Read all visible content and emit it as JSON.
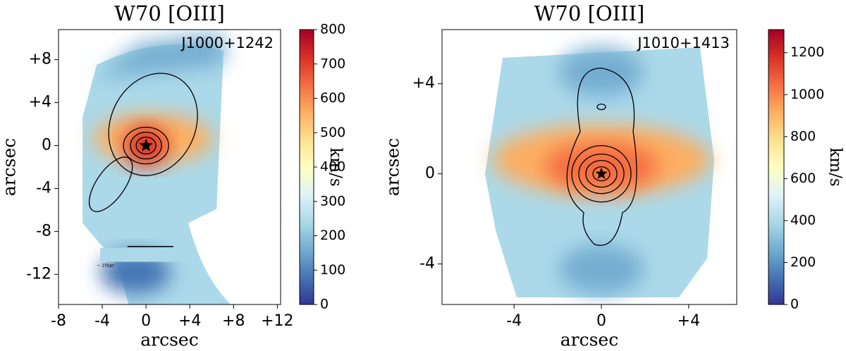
{
  "chart_data": [
    {
      "type": "heatmap",
      "title": "W70 [OIII]",
      "annotation": "J1000+1242",
      "scale_label": "~ 15kpc",
      "xlabel": "arcsec",
      "ylabel": "arcsec",
      "xlim": [
        -8,
        12.3
      ],
      "ylim": [
        -14.8,
        10.8
      ],
      "xticks": [
        -8,
        -4,
        0,
        {
          "value": 4,
          "label": "+4"
        },
        {
          "value": 8,
          "label": "+8"
        },
        {
          "value": 12,
          "label": "+12"
        }
      ],
      "yticks": [
        {
          "value": 8,
          "label": "+8"
        },
        {
          "value": 4,
          "label": "+4"
        },
        0,
        -4,
        -8,
        -12
      ],
      "colorbar": {
        "label": "km/s",
        "lim": [
          0,
          800
        ],
        "ticks": [
          0,
          100,
          200,
          300,
          400,
          500,
          600,
          700,
          800
        ],
        "colormap": "RdYlBu_r"
      }
    },
    {
      "type": "heatmap",
      "title": "W70 [OIII]",
      "annotation": "J1010+1413",
      "xlabel": "arcsec",
      "ylabel": "arcsec",
      "xlim": [
        -7.3,
        6.2
      ],
      "ylim": [
        -5.8,
        6.4
      ],
      "xticks": [
        -4,
        0,
        {
          "value": 4,
          "label": "+4"
        }
      ],
      "yticks": [
        {
          "value": 4,
          "label": "+4"
        },
        0,
        -4
      ],
      "colorbar": {
        "label": "km/s",
        "lim": [
          0,
          1310
        ],
        "ticks": [
          0,
          200,
          400,
          600,
          800,
          1000,
          1200
        ],
        "colormap": "RdYlBu_r"
      }
    }
  ]
}
